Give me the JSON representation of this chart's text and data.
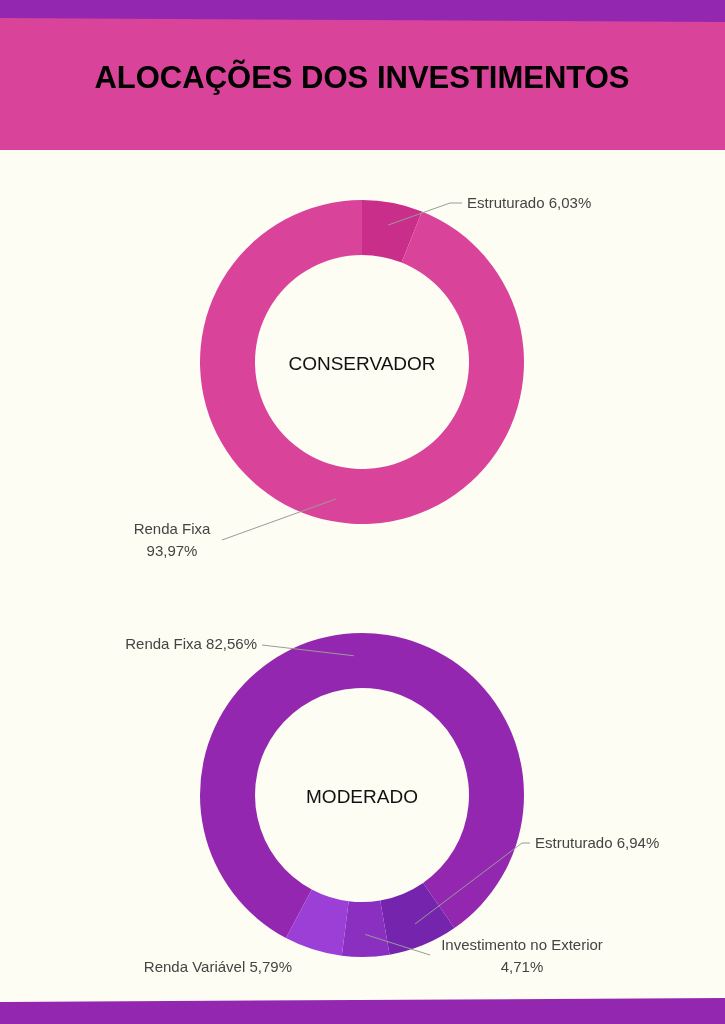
{
  "chart_data": [
    {
      "type": "donut",
      "title": "ALOCAÇÕES DOS INVESTIMENTOS",
      "subtitle": "CONSERVADOR",
      "categories": [
        "Estruturado",
        "Renda Fixa"
      ],
      "values": [
        6.03,
        93.97
      ],
      "colors": [
        "#c92e8a",
        "#d9449a"
      ],
      "value_labels": [
        "6,03%",
        "93,97%"
      ]
    },
    {
      "type": "donut",
      "subtitle": "MODERADO",
      "categories": [
        "Renda Fixa",
        "Estruturado",
        "Investimento no Exterior",
        "Renda Variável"
      ],
      "values": [
        82.56,
        6.94,
        4.71,
        5.79
      ],
      "colors": [
        "#9327b0",
        "#7524ad",
        "#8a2fc0",
        "#9b3fd6"
      ],
      "value_labels": [
        "82,56%",
        "6,94%",
        "4,71%",
        "5,79%"
      ]
    }
  ]
}
